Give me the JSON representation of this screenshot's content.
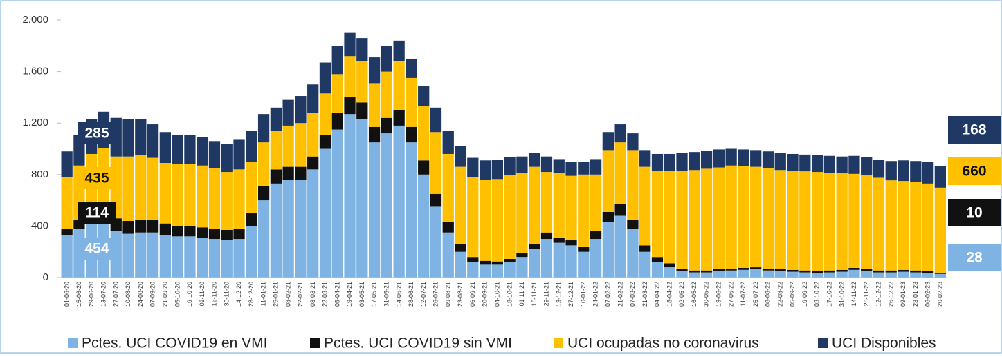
{
  "chart_data": {
    "type": "stacked_bar",
    "categories": [
      "01-06-20",
      "15-06-20",
      "29-06-20",
      "13-07-20",
      "27-07-20",
      "10-08-20",
      "24-08-20",
      "07-09-20",
      "21-09-20",
      "05-10-20",
      "19-10-20",
      "02-11-20",
      "16-11-20",
      "30-11-20",
      "14-12-20",
      "28-12-20",
      "11-01-21",
      "25-01-21",
      "08-02-21",
      "22-02-21",
      "08-03-21",
      "22-03-21",
      "05-04-21",
      "19-04-21",
      "03-05-21",
      "17-05-21",
      "31-05-21",
      "14-06-21",
      "28-06-21",
      "12-07-21",
      "26-07-21",
      "09-08-21",
      "23-08-21",
      "06-09-21",
      "20-09-21",
      "04-10-21",
      "18-10-21",
      "01-11-21",
      "15-11-21",
      "29-11-21",
      "13-12-21",
      "27-12-21",
      "10-01-22",
      "24-01-22",
      "07-02-22",
      "21-02-22",
      "07-03-22",
      "21-03-22",
      "04-04-22",
      "18-04-22",
      "02-05-22",
      "16-05-22",
      "30-05-22",
      "13-06-22",
      "27-06-22",
      "11-07-22",
      "25-07-22",
      "08-08-22",
      "22-08-22",
      "05-09-22",
      "19-09-22",
      "03-10-22",
      "17-10-22",
      "31-10-22",
      "14-11-22",
      "28-11-22",
      "12-12-22",
      "26-12-22",
      "09-01-23",
      "23-01-23",
      "06-02-23",
      "20-02-23"
    ],
    "series": [
      {
        "name": "Pctes. UCI COVID19 en VMI",
        "color": "#7eb3e3",
        "values": [
          330,
          380,
          430,
          454,
          360,
          340,
          350,
          350,
          330,
          320,
          320,
          310,
          300,
          290,
          300,
          400,
          600,
          730,
          760,
          760,
          840,
          1000,
          1150,
          1270,
          1230,
          1050,
          1120,
          1180,
          1050,
          800,
          550,
          350,
          200,
          120,
          100,
          100,
          120,
          160,
          220,
          300,
          270,
          250,
          200,
          300,
          430,
          480,
          380,
          200,
          120,
          80,
          50,
          40,
          40,
          50,
          55,
          60,
          65,
          55,
          50,
          45,
          40,
          35,
          40,
          45,
          60,
          50,
          40,
          40,
          45,
          40,
          35,
          28
        ]
      },
      {
        "name": "Pctes. UCI COVID19 sin VMI",
        "color": "#111111",
        "values": [
          50,
          70,
          100,
          114,
          100,
          100,
          100,
          100,
          90,
          80,
          80,
          80,
          80,
          80,
          80,
          100,
          110,
          110,
          100,
          100,
          100,
          110,
          130,
          130,
          130,
          120,
          120,
          120,
          120,
          110,
          100,
          80,
          60,
          40,
          30,
          25,
          25,
          30,
          40,
          50,
          40,
          40,
          40,
          60,
          80,
          90,
          70,
          50,
          40,
          30,
          20,
          15,
          15,
          15,
          15,
          15,
          15,
          15,
          15,
          15,
          15,
          15,
          15,
          15,
          15,
          15,
          15,
          15,
          15,
          15,
          15,
          10
        ]
      },
      {
        "name": "UCI ocupadas no coronavirus",
        "color": "#ffc000",
        "values": [
          400,
          420,
          430,
          435,
          480,
          500,
          500,
          480,
          470,
          480,
          480,
          480,
          470,
          450,
          460,
          400,
          340,
          300,
          320,
          340,
          340,
          320,
          300,
          320,
          320,
          340,
          360,
          380,
          380,
          420,
          480,
          530,
          600,
          620,
          630,
          640,
          650,
          620,
          600,
          470,
          500,
          500,
          560,
          440,
          480,
          480,
          540,
          610,
          670,
          720,
          760,
          780,
          790,
          790,
          800,
          790,
          780,
          780,
          770,
          770,
          770,
          770,
          760,
          750,
          730,
          730,
          720,
          700,
          690,
          690,
          680,
          660
        ]
      },
      {
        "name": "UCI Disponibles",
        "color": "#1f3864",
        "values": [
          200,
          240,
          270,
          285,
          300,
          290,
          280,
          260,
          240,
          230,
          230,
          220,
          210,
          220,
          230,
          240,
          220,
          180,
          200,
          210,
          220,
          240,
          220,
          180,
          180,
          200,
          200,
          160,
          150,
          160,
          190,
          180,
          160,
          150,
          150,
          150,
          140,
          130,
          110,
          120,
          110,
          110,
          100,
          120,
          140,
          140,
          130,
          130,
          130,
          130,
          140,
          140,
          140,
          140,
          130,
          130,
          130,
          130,
          130,
          130,
          130,
          130,
          130,
          130,
          140,
          140,
          140,
          150,
          160,
          160,
          170,
          168
        ]
      }
    ],
    "start_callouts": [
      454,
      114,
      435,
      285
    ],
    "end_callouts": [
      28,
      10,
      660,
      168
    ],
    "ylim": [
      0,
      2000
    ],
    "yticks": [
      0,
      400,
      800,
      {
        "value": 1200,
        "label": "1.200"
      },
      {
        "value": 1600,
        "label": "1.600"
      },
      {
        "value": 2000,
        "label": "2.000"
      }
    ],
    "grid": false
  }
}
